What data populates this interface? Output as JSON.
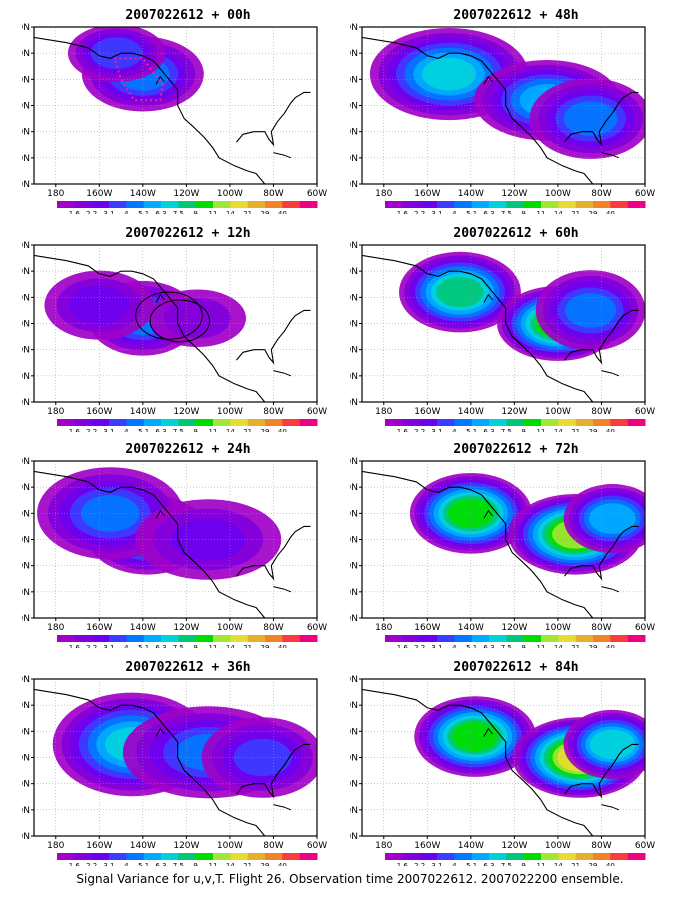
{
  "panels": [
    {
      "title": "2007022612 + 00h",
      "anomaly": "initial",
      "blobs": [
        [
          -140,
          52,
          14,
          9,
          0.9
        ],
        [
          -152,
          60,
          10,
          6,
          0.7
        ]
      ],
      "box": true
    },
    {
      "title": "2007022612 + 12h",
      "anomaly": "12h",
      "blobs": [
        [
          -140,
          42,
          12,
          9,
          1.0
        ],
        [
          -160,
          47,
          12,
          8,
          0.6
        ],
        [
          -115,
          42,
          10,
          6,
          0.4
        ]
      ],
      "circles": true
    },
    {
      "title": "2007022612 + 24h",
      "anomaly": "24h",
      "blobs": [
        [
          -138,
          42,
          14,
          10,
          1.2
        ],
        [
          -155,
          50,
          18,
          12,
          0.9
        ],
        [
          -110,
          40,
          18,
          10,
          0.6
        ]
      ]
    },
    {
      "title": "2007022612 + 36h",
      "anomaly": "36h",
      "blobs": [
        [
          -145,
          45,
          20,
          14,
          1.3
        ],
        [
          -110,
          42,
          22,
          12,
          1.0
        ],
        [
          -85,
          40,
          14,
          10,
          0.7
        ]
      ]
    },
    {
      "title": "2007022612 + 48h",
      "anomaly": "48h",
      "blobs": [
        [
          -150,
          52,
          20,
          12,
          1.4
        ],
        [
          -105,
          42,
          18,
          10,
          1.2
        ],
        [
          -85,
          35,
          14,
          10,
          0.9
        ]
      ]
    },
    {
      "title": "2007022612 + 60h",
      "anomaly": "60h",
      "blobs": [
        [
          -145,
          52,
          14,
          10,
          1.6
        ],
        [
          -100,
          40,
          14,
          9,
          1.7
        ],
        [
          -85,
          45,
          12,
          10,
          1.0
        ]
      ]
    },
    {
      "title": "2007022612 + 72h",
      "anomaly": "72h",
      "blobs": [
        [
          -140,
          50,
          14,
          10,
          1.7
        ],
        [
          -92,
          42,
          16,
          10,
          1.9
        ],
        [
          -75,
          48,
          10,
          8,
          1.2
        ]
      ]
    },
    {
      "title": "2007022612 + 84h",
      "anomaly": "84h",
      "blobs": [
        [
          -138,
          48,
          14,
          10,
          1.7
        ],
        [
          -90,
          40,
          16,
          10,
          2.2
        ],
        [
          -75,
          45,
          10,
          8,
          1.4
        ]
      ]
    }
  ],
  "axes": {
    "x_ticks": [
      "180",
      "160W",
      "140W",
      "120W",
      "100W",
      "80W",
      "60W"
    ],
    "y_ticks": [
      "10N",
      "20N",
      "30N",
      "40N",
      "50N",
      "60N",
      "70N"
    ]
  },
  "colorbar": {
    "labels": [
      "1.6",
      "2.2",
      "3.1",
      "4",
      "5.1",
      "6.3",
      "7.5",
      "9",
      "11",
      "14",
      "21",
      "29",
      "40"
    ],
    "colors": [
      "#a000c8",
      "#8200dc",
      "#6e00f0",
      "#3c3cff",
      "#0078ff",
      "#00aaff",
      "#00d2dc",
      "#00c878",
      "#00dc00",
      "#a0e632",
      "#e6dc32",
      "#e6af2d",
      "#f08228",
      "#fa3c3c",
      "#f00082"
    ]
  },
  "footer": "Signal Variance for u,v,T. Flight 26. Observation time 2007022612. 2007022200 ensemble."
}
